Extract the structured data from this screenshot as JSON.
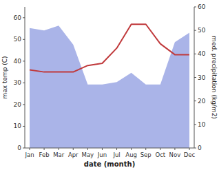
{
  "chart_data": {
    "type": "line",
    "categories": [
      "Jan",
      "Feb",
      "Mar",
      "Apr",
      "May",
      "Jun",
      "Jul",
      "Aug",
      "Sep",
      "Oct",
      "Nov",
      "Dec"
    ],
    "series": [
      {
        "type": "area",
        "axis": "y2",
        "color": "#aab4e8",
        "values": [
          51,
          50,
          52,
          44,
          27,
          27,
          28,
          32,
          27,
          27,
          45,
          49
        ]
      },
      {
        "type": "line",
        "color": "#c0393b",
        "values": [
          36,
          35,
          35,
          35,
          38,
          39,
          46,
          57,
          57,
          48,
          43,
          43
        ]
      }
    ],
    "ylim": [
      0,
      65
    ],
    "yticks": [
      0,
      10,
      20,
      30,
      40,
      50,
      60
    ],
    "y2lim": [
      0,
      60
    ],
    "y2ticks": [
      0,
      10,
      20,
      30,
      40,
      50,
      60
    ],
    "xlabel": "date (month)",
    "ylabel": "max temp (C)",
    "y2label": "med. precipitation (kg/m2)",
    "grid": false
  }
}
